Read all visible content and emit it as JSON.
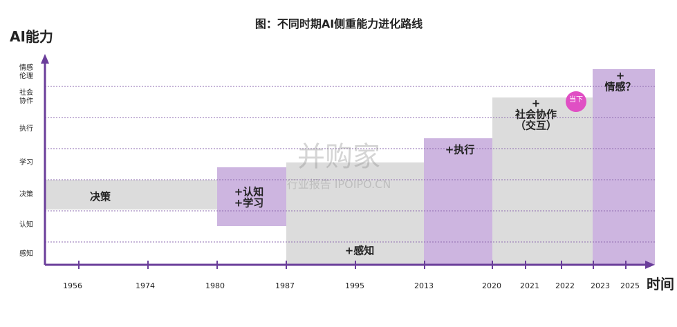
{
  "title": "图：不同时期AI侧重能力进化路线",
  "y_axis_label": "AI能力",
  "x_axis_label": "时间",
  "levels": [
    {
      "lines": [
        "感知"
      ]
    },
    {
      "lines": [
        "认知"
      ]
    },
    {
      "lines": [
        "决策"
      ]
    },
    {
      "lines": [
        "学习"
      ]
    },
    {
      "lines": [
        "执行"
      ]
    },
    {
      "lines": [
        "社会",
        "协作"
      ]
    },
    {
      "lines": [
        "情感",
        "伦理"
      ]
    }
  ],
  "years": [
    "1956",
    "1974",
    "1980",
    "1987",
    "1995",
    "2013",
    "2020",
    "2021",
    "2022",
    "2023",
    "2025"
  ],
  "blocks": [
    {
      "lines": [
        "决策"
      ]
    },
    {
      "lines": [
        "+认知",
        "+学习"
      ]
    },
    {
      "lines": [
        "+感知"
      ]
    },
    {
      "lines": [
        "+执行"
      ]
    },
    {
      "lines": [
        "+",
        "社会协作",
        "（交互）"
      ]
    },
    {
      "lines": [
        "+",
        "情感？"
      ]
    }
  ],
  "badge": "当下",
  "watermark": {
    "brand": "并购家",
    "sub": "行业报告 IPOIPO.CN"
  }
}
